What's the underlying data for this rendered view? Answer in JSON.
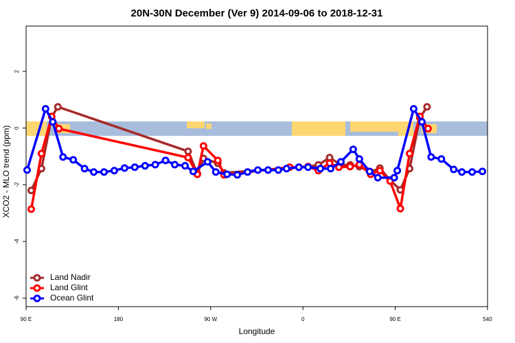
{
  "chart_data": {
    "type": "line",
    "title": "20N-30N December (Ver 9)   2014-09-06 to 2018-12-31",
    "x_label": "Longitude",
    "y_label": "XCO2 - MLO trend (ppm)",
    "xlim": [
      90,
      540
    ],
    "ylim": [
      -6.3,
      3.6
    ],
    "xticks": [
      {
        "value": 90,
        "label": "90 E"
      },
      180,
      {
        "value": 270,
        "label": "90 W"
      },
      {
        "value": 360,
        "label": "0"
      },
      {
        "value": 450,
        "label": "90 E"
      },
      540
    ],
    "yticks": [
      2,
      0,
      -2,
      -4,
      -6
    ],
    "legend": "bottom-left",
    "series": [
      {
        "name": "Land Nadir",
        "color": "#a52a2a",
        "x": [
          95,
          105,
          115,
          121,
          248,
          257,
          263,
          277,
          283,
          365,
          375,
          386,
          397,
          406,
          415,
          426,
          435,
          445,
          455,
          464,
          474,
          481
        ],
        "values": [
          -2.2,
          -1.43,
          0.4,
          0.75,
          -0.82,
          -1.6,
          -1.07,
          -1.24,
          -1.58,
          -1.36,
          -1.3,
          -1.04,
          -1.3,
          -1.3,
          -1.36,
          -1.55,
          -1.41,
          -1.84,
          -2.18,
          -1.43,
          0.36,
          0.75
        ]
      },
      {
        "name": "Land Glint",
        "color": "#ff0000",
        "x": [
          95,
          105,
          115,
          122,
          248,
          257,
          263,
          277,
          283,
          347,
          356,
          365,
          375,
          386,
          395,
          406,
          415,
          426,
          435,
          445,
          455,
          464,
          474,
          482
        ],
        "values": [
          -2.86,
          -0.9,
          0.41,
          -0.02,
          -1.04,
          -1.63,
          -0.63,
          -1.14,
          -1.65,
          -1.38,
          -1.38,
          -1.36,
          -1.5,
          -1.24,
          -1.38,
          -1.36,
          -1.29,
          -1.63,
          -1.5,
          -1.87,
          -2.84,
          -0.9,
          0.41,
          -0.02
        ]
      },
      {
        "name": "Ocean Glint",
        "color": "#0000ff",
        "x": [
          91,
          109,
          116,
          126,
          136,
          147,
          156,
          166,
          176,
          186,
          196,
          206,
          216,
          226,
          235,
          245,
          253,
          267,
          275,
          286,
          296,
          306,
          316,
          326,
          336,
          344,
          356,
          365,
          377,
          387,
          397,
          409,
          415,
          425,
          433,
          449,
          452,
          468,
          476,
          485,
          495,
          507,
          515,
          525,
          535
        ],
        "values": [
          -1.48,
          0.68,
          0.22,
          -1.02,
          -1.12,
          -1.43,
          -1.55,
          -1.55,
          -1.5,
          -1.41,
          -1.38,
          -1.33,
          -1.29,
          -1.14,
          -1.29,
          -1.33,
          -1.53,
          -1.19,
          -1.55,
          -1.63,
          -1.65,
          -1.55,
          -1.48,
          -1.48,
          -1.48,
          -1.43,
          -1.38,
          -1.38,
          -1.43,
          -1.43,
          -1.19,
          -0.75,
          -1.09,
          -1.53,
          -1.75,
          -1.75,
          -1.5,
          0.68,
          0.22,
          -1.02,
          -1.09,
          -1.46,
          -1.55,
          -1.55,
          -1.53
        ]
      }
    ]
  }
}
